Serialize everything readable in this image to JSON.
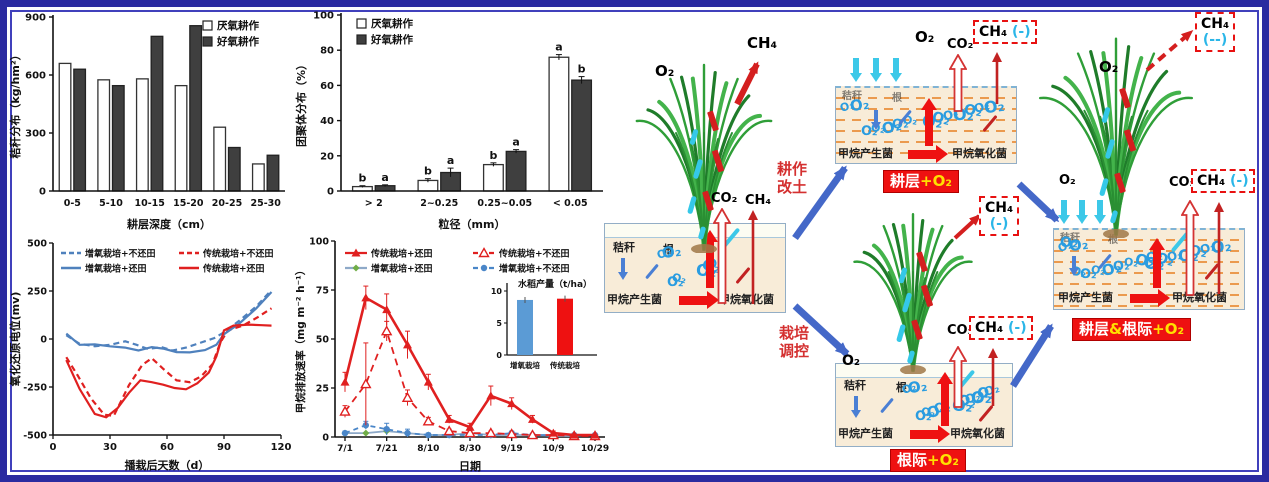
{
  "frame": {
    "border_color": "#2b2ba0",
    "background": "#ffffff"
  },
  "chart_data": [
    {
      "id": "chartA",
      "type": "bar",
      "title": "",
      "ylabel": "秸秆分布（kg/hm²）",
      "xlabel": "耕层深度（cm）",
      "ylim": [
        0,
        900
      ],
      "yticks": [
        0,
        300,
        600,
        900
      ],
      "categories": [
        "0-5",
        "5-10",
        "10-15",
        "15-20",
        "20-25",
        "25-30"
      ],
      "legend_position": "top-right",
      "grid": false,
      "series": [
        {
          "name": "厌氧耕作",
          "fill": "#ffffff",
          "stroke": "#333333",
          "values": [
            660,
            575,
            580,
            545,
            330,
            140
          ]
        },
        {
          "name": "好氧耕作",
          "fill": "#3f3f3f",
          "stroke": "#222222",
          "values": [
            630,
            545,
            800,
            855,
            225,
            185
          ]
        }
      ]
    },
    {
      "id": "chartC",
      "type": "bar",
      "title": "",
      "ylabel": "团聚体分布（%）",
      "xlabel": "粒径（mm）",
      "ylim": [
        0,
        100
      ],
      "yticks": [
        0,
        20,
        40,
        60,
        80,
        100
      ],
      "categories": [
        "> 2",
        "2~0.25",
        "0.25~0.05",
        "< 0.05"
      ],
      "legend_position": "top-left",
      "grid": false,
      "series": [
        {
          "name": "厌氧耕作",
          "fill": "#ffffff",
          "stroke": "#333333",
          "values": [
            2.5,
            6,
            15,
            76
          ],
          "errors": [
            0.5,
            1,
            1,
            1.5
          ],
          "letters": [
            "b",
            "b",
            "b",
            "a"
          ]
        },
        {
          "name": "好氧耕作",
          "fill": "#3f3f3f",
          "stroke": "#222222",
          "values": [
            3,
            10.5,
            22.5,
            63
          ],
          "errors": [
            0.5,
            2.5,
            1,
            2
          ],
          "letters": [
            "a",
            "a",
            "a",
            "b"
          ]
        }
      ]
    },
    {
      "id": "chartB",
      "type": "line",
      "title": "",
      "ylabel": "氧化还原电位(mv)",
      "xlabel": "播栽后天数（d）",
      "ylim": [
        -500,
        500
      ],
      "yticks": [
        -500,
        -250,
        0,
        250,
        500
      ],
      "xlim": [
        0,
        120
      ],
      "xticks": [
        0,
        30,
        60,
        90,
        120
      ],
      "legend_position": "top-inside",
      "grid": false,
      "series": [
        {
          "name": "增氧栽培+不还田",
          "color": "#4f81bd",
          "dash": "6,4",
          "points": [
            [
              7,
              20
            ],
            [
              14,
              -25
            ],
            [
              22,
              -38
            ],
            [
              30,
              -30
            ],
            [
              38,
              -12
            ],
            [
              44,
              -30
            ],
            [
              50,
              -52
            ],
            [
              57,
              -42
            ],
            [
              63,
              -60
            ],
            [
              70,
              -45
            ],
            [
              78,
              -18
            ],
            [
              85,
              5
            ],
            [
              90,
              35
            ],
            [
              98,
              95
            ],
            [
              107,
              170
            ],
            [
              115,
              255
            ]
          ]
        },
        {
          "name": "传统栽培+不还田",
          "color": "#e02020",
          "dash": "6,4",
          "points": [
            [
              7,
              -95
            ],
            [
              13,
              -190
            ],
            [
              20,
              -310
            ],
            [
              27,
              -395
            ],
            [
              32,
              -400
            ],
            [
              40,
              -240
            ],
            [
              47,
              -135
            ],
            [
              52,
              -100
            ],
            [
              58,
              -155
            ],
            [
              65,
              -215
            ],
            [
              72,
              -225
            ],
            [
              78,
              -195
            ],
            [
              84,
              -130
            ],
            [
              88,
              -20
            ],
            [
              92,
              45
            ],
            [
              100,
              70
            ],
            [
              108,
              115
            ],
            [
              115,
              160
            ]
          ]
        },
        {
          "name": "增氧栽培+还田",
          "color": "#4f81bd",
          "dash": "",
          "points": [
            [
              7,
              28
            ],
            [
              14,
              -30
            ],
            [
              22,
              -28
            ],
            [
              30,
              -38
            ],
            [
              38,
              -45
            ],
            [
              45,
              -60
            ],
            [
              52,
              -42
            ],
            [
              58,
              -50
            ],
            [
              65,
              -68
            ],
            [
              72,
              -70
            ],
            [
              80,
              -58
            ],
            [
              86,
              -30
            ],
            [
              90,
              25
            ],
            [
              98,
              80
            ],
            [
              107,
              160
            ],
            [
              115,
              245
            ]
          ]
        },
        {
          "name": "传统栽培+还田",
          "color": "#e02020",
          "dash": "",
          "points": [
            [
              7,
              -110
            ],
            [
              14,
              -260
            ],
            [
              22,
              -390
            ],
            [
              28,
              -408
            ],
            [
              34,
              -360
            ],
            [
              40,
              -280
            ],
            [
              46,
              -215
            ],
            [
              52,
              -225
            ],
            [
              58,
              -238
            ],
            [
              64,
              -255
            ],
            [
              70,
              -262
            ],
            [
              76,
              -230
            ],
            [
              82,
              -175
            ],
            [
              86,
              -90
            ],
            [
              90,
              45
            ],
            [
              95,
              70
            ],
            [
              103,
              75
            ],
            [
              110,
              72
            ],
            [
              115,
              70
            ]
          ]
        }
      ]
    },
    {
      "id": "chartD",
      "type": "line-markers",
      "title": "",
      "ylabel": "甲烷排放速率（mg m⁻² h⁻¹）",
      "xlabel": "日期",
      "ylim": [
        0,
        100
      ],
      "yticks": [
        0,
        25,
        50,
        75,
        100
      ],
      "x_categories": [
        "7/1",
        "7/11",
        "7/21",
        "7/31",
        "8/10",
        "8/20",
        "8/30",
        "9/9",
        "9/19",
        "9/29",
        "10/9",
        "10/19",
        "10/29"
      ],
      "x_tick_labels": [
        "7/1",
        "7/21",
        "8/10",
        "8/30",
        "9/19",
        "10/9",
        "10/29"
      ],
      "legend_position": "top-inside",
      "grid": false,
      "series": [
        {
          "name": "增氧栽培+还田",
          "color": "#8ea9c8",
          "dash": "",
          "marker": "diamond-green",
          "values": [
            2,
            2,
            3,
            2,
            1,
            1,
            2,
            1,
            1,
            1,
            0.5,
            0.5,
            1
          ],
          "errors": [
            0.5,
            0.5,
            1,
            0.5,
            0.5,
            0.5,
            0.5,
            0.5,
            0.5,
            0.5,
            0.3,
            0.3,
            0.5
          ]
        },
        {
          "name": "增氧栽培+不还田",
          "color": "#4a86c8",
          "dash": "5,4",
          "marker": "circle-blue",
          "values": [
            2,
            6,
            4,
            2,
            1,
            1,
            1,
            1,
            2,
            1,
            1,
            1,
            1
          ],
          "errors": [
            1,
            2,
            3,
            2,
            1,
            0.5,
            0.5,
            0.5,
            1,
            0.5,
            0.5,
            0.5,
            0.5
          ]
        },
        {
          "name": "传统栽培+不还田",
          "color": "#e02020",
          "dash": "7,5",
          "marker": "triangle-open",
          "values": [
            13,
            27,
            54,
            20,
            8,
            3,
            2,
            2,
            1.5,
            1,
            1,
            0.5,
            0.5
          ],
          "errors": [
            3,
            21,
            5,
            4,
            2,
            1,
            1,
            1,
            0.5,
            0.5,
            0.5,
            0.3,
            0.3
          ]
        },
        {
          "name": "传统栽培+还田",
          "color": "#e02020",
          "dash": "",
          "marker": "triangle-solid",
          "values": [
            28,
            71,
            65,
            47,
            28,
            9,
            5,
            21,
            17,
            9,
            2,
            1,
            1
          ],
          "errors": [
            5,
            6,
            8,
            7,
            4,
            2,
            2,
            5,
            3,
            2,
            1,
            0.5,
            0.5
          ]
        }
      ],
      "legend_order": [
        "传统栽培+还田",
        "传统栽培+不还田",
        "增氧栽培+还田",
        "增氧栽培+不还田"
      ],
      "inset": {
        "type": "bar",
        "title": "水稻产量（t/ha）",
        "yticks": [
          0,
          5,
          10
        ],
        "ylim": [
          0,
          10
        ],
        "categories": [
          "增氧栽培",
          "传统栽培"
        ],
        "values": [
          8.6,
          8.8
        ],
        "colors": [
          "#5b9bd5",
          "#ee1111"
        ]
      }
    }
  ],
  "diagram": {
    "o2": "O₂",
    "ch4": "CH₄",
    "co2": "CO₂",
    "minus": "(-)",
    "dminus": "(--)",
    "straw": "秸秆",
    "root": "根",
    "methanogen": "甲烷产生菌",
    "methanotroph": "甲烷氧化菌",
    "tillage_line1": "耕作",
    "tillage_line2": "改土",
    "cultivation_line1": "栽培",
    "cultivation_line2": "调控",
    "tag_topsoil": "耕层",
    "tag_rhizo": "根际",
    "tag_plus_o2": "+O₂",
    "tag_amp": "&",
    "accent_red": "#ee1111",
    "accent_blue": "#4468c8",
    "accent_cyan": "#3cc8e8",
    "o2_blue": "#2a9ce0"
  }
}
